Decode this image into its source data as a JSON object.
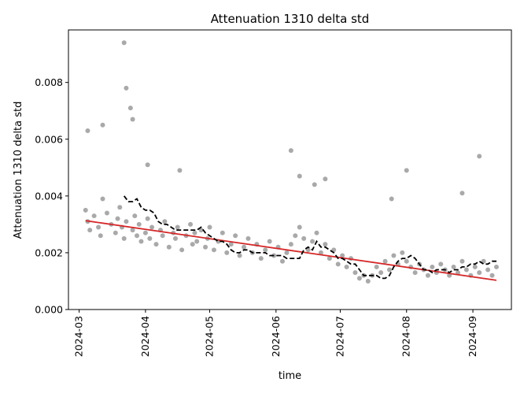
{
  "chart_data": {
    "type": "scatter",
    "title": "Attenuation 1310 delta std",
    "xlabel": "time",
    "ylabel": "Attenuation 1310 delta std",
    "xlim": [
      "2024-02-25",
      "2024-09-19"
    ],
    "ylim": [
      0,
      0.00985
    ],
    "x_ticks": [
      "2024-03",
      "2024-04",
      "2024-05",
      "2024-06",
      "2024-07",
      "2024-08",
      "2024-09"
    ],
    "y_ticks": [
      0.0,
      0.002,
      0.004,
      0.006,
      0.008
    ],
    "y_tick_labels": [
      "0.000",
      "0.002",
      "0.004",
      "0.006",
      "0.008"
    ],
    "grid": false,
    "colors": {
      "points": "#a9a9a9",
      "trend": "#d62728",
      "rolling": "#000000"
    },
    "series": [
      {
        "kind": "points",
        "x": [
          "2024-03-04",
          "2024-03-05",
          "2024-03-06",
          "2024-03-08",
          "2024-03-10",
          "2024-03-11",
          "2024-03-12",
          "2024-03-14",
          "2024-03-16",
          "2024-03-18",
          "2024-03-19",
          "2024-03-20",
          "2024-03-21",
          "2024-03-22",
          "2024-03-23",
          "2024-03-26",
          "2024-03-27",
          "2024-03-28",
          "2024-03-29",
          "2024-03-30",
          "2024-04-01",
          "2024-04-02",
          "2024-04-03",
          "2024-04-04",
          "2024-04-06",
          "2024-04-08",
          "2024-04-09",
          "2024-04-10",
          "2024-04-12",
          "2024-04-14",
          "2024-04-15",
          "2024-04-16",
          "2024-04-18",
          "2024-04-20",
          "2024-04-22",
          "2024-04-23",
          "2024-04-24",
          "2024-04-25",
          "2024-04-27",
          "2024-04-29",
          "2024-04-30",
          "2024-05-01",
          "2024-05-03",
          "2024-05-05",
          "2024-05-07",
          "2024-05-09",
          "2024-05-11",
          "2024-05-13",
          "2024-05-15",
          "2024-05-17",
          "2024-05-19",
          "2024-05-21",
          "2024-05-23",
          "2024-05-25",
          "2024-05-27",
          "2024-05-29",
          "2024-05-31",
          "2024-06-02",
          "2024-06-04",
          "2024-06-06",
          "2024-06-08",
          "2024-06-10",
          "2024-06-12",
          "2024-06-14",
          "2024-06-16",
          "2024-06-18",
          "2024-06-20",
          "2024-06-22",
          "2024-06-24",
          "2024-06-26",
          "2024-06-28",
          "2024-06-30",
          "2024-07-02",
          "2024-07-04",
          "2024-07-06",
          "2024-07-08",
          "2024-07-10",
          "2024-07-12",
          "2024-07-14",
          "2024-07-16",
          "2024-07-18",
          "2024-07-20",
          "2024-07-22",
          "2024-07-24",
          "2024-07-26",
          "2024-07-28",
          "2024-07-30",
          "2024-08-01",
          "2024-08-03",
          "2024-08-05",
          "2024-08-07",
          "2024-08-09",
          "2024-08-11",
          "2024-08-13",
          "2024-08-15",
          "2024-08-17",
          "2024-08-19",
          "2024-08-21",
          "2024-08-23",
          "2024-08-25",
          "2024-08-27",
          "2024-08-29",
          "2024-08-31",
          "2024-09-02",
          "2024-09-04",
          "2024-09-06",
          "2024-09-08",
          "2024-09-10",
          "2024-09-12",
          "2024-03-22",
          "2024-03-25",
          "2024-03-23",
          "2024-06-08",
          "2024-08-01",
          "2024-09-04",
          "2024-03-05",
          "2024-03-12",
          "2024-03-26",
          "2024-04-02",
          "2024-04-17",
          "2024-06-19",
          "2024-06-24",
          "2024-06-12",
          "2024-07-25",
          "2024-08-27"
        ],
        "y": [
          0.0035,
          0.0031,
          0.0028,
          0.0033,
          0.0029,
          0.0026,
          0.0039,
          0.0034,
          0.003,
          0.0027,
          0.0032,
          0.0036,
          0.0029,
          0.0025,
          0.0031,
          0.0028,
          0.0033,
          0.0026,
          0.003,
          0.0024,
          0.0027,
          0.0032,
          0.0025,
          0.0029,
          0.0023,
          0.0028,
          0.0026,
          0.0031,
          0.0022,
          0.0027,
          0.0025,
          0.0029,
          0.0021,
          0.0026,
          0.003,
          0.0023,
          0.0027,
          0.0024,
          0.0028,
          0.0022,
          0.0025,
          0.0029,
          0.0021,
          0.0024,
          0.0027,
          0.002,
          0.0023,
          0.0026,
          0.0019,
          0.0022,
          0.0025,
          0.002,
          0.0023,
          0.0018,
          0.0021,
          0.0024,
          0.0019,
          0.0022,
          0.0017,
          0.002,
          0.0023,
          0.0026,
          0.0029,
          0.0025,
          0.0021,
          0.0024,
          0.0027,
          0.002,
          0.0023,
          0.0018,
          0.0021,
          0.0016,
          0.0019,
          0.0015,
          0.0018,
          0.0013,
          0.0011,
          0.0012,
          0.001,
          0.0012,
          0.0015,
          0.0013,
          0.0017,
          0.0014,
          0.0019,
          0.0016,
          0.002,
          0.0017,
          0.0015,
          0.0013,
          0.0016,
          0.0014,
          0.0012,
          0.0015,
          0.0013,
          0.0016,
          0.0014,
          0.0012,
          0.0015,
          0.0013,
          0.0017,
          0.0014,
          0.0012,
          0.0015,
          0.0013,
          0.0017,
          0.0014,
          0.0012,
          0.0015,
          0.0094,
          0.0071,
          0.0078,
          0.0056,
          0.0049,
          0.0054,
          0.0063,
          0.0065,
          0.0067,
          0.0051,
          0.0049,
          0.0044,
          0.0046,
          0.0047,
          0.0039,
          0.0041
        ]
      },
      {
        "kind": "trend",
        "x": [
          "2024-03-04",
          "2024-09-12"
        ],
        "y": [
          0.00313,
          0.00103
        ]
      },
      {
        "kind": "rolling",
        "x": [
          "2024-03-22",
          "2024-03-24",
          "2024-03-26",
          "2024-03-28",
          "2024-03-30",
          "2024-04-01",
          "2024-04-03",
          "2024-04-05",
          "2024-04-07",
          "2024-04-09",
          "2024-04-11",
          "2024-04-13",
          "2024-04-15",
          "2024-04-17",
          "2024-04-19",
          "2024-04-21",
          "2024-04-23",
          "2024-04-25",
          "2024-04-27",
          "2024-04-29",
          "2024-05-01",
          "2024-05-03",
          "2024-05-05",
          "2024-05-07",
          "2024-05-09",
          "2024-05-11",
          "2024-05-13",
          "2024-05-15",
          "2024-05-17",
          "2024-05-19",
          "2024-05-21",
          "2024-05-23",
          "2024-05-25",
          "2024-05-27",
          "2024-05-29",
          "2024-05-31",
          "2024-06-02",
          "2024-06-04",
          "2024-06-06",
          "2024-06-08",
          "2024-06-10",
          "2024-06-12",
          "2024-06-14",
          "2024-06-16",
          "2024-06-18",
          "2024-06-20",
          "2024-06-22",
          "2024-06-24",
          "2024-06-26",
          "2024-06-28",
          "2024-06-30",
          "2024-07-02",
          "2024-07-04",
          "2024-07-06",
          "2024-07-08",
          "2024-07-10",
          "2024-07-12",
          "2024-07-14",
          "2024-07-16",
          "2024-07-18",
          "2024-07-20",
          "2024-07-22",
          "2024-07-24",
          "2024-07-26",
          "2024-07-28",
          "2024-07-30",
          "2024-08-01",
          "2024-08-03",
          "2024-08-05",
          "2024-08-07",
          "2024-08-09",
          "2024-08-11",
          "2024-08-13",
          "2024-08-15",
          "2024-08-17",
          "2024-08-19",
          "2024-08-21",
          "2024-08-23",
          "2024-08-25",
          "2024-08-27",
          "2024-08-29",
          "2024-08-31",
          "2024-09-02",
          "2024-09-04",
          "2024-09-06",
          "2024-09-08",
          "2024-09-10",
          "2024-09-12"
        ],
        "y": [
          0.004,
          0.0038,
          0.0038,
          0.0039,
          0.0036,
          0.0035,
          0.0035,
          0.0034,
          0.0031,
          0.003,
          0.003,
          0.0029,
          0.0028,
          0.0028,
          0.0028,
          0.0028,
          0.0028,
          0.0028,
          0.0029,
          0.0027,
          0.0026,
          0.0025,
          0.0024,
          0.0024,
          0.0023,
          0.0021,
          0.002,
          0.002,
          0.0021,
          0.0021,
          0.002,
          0.002,
          0.002,
          0.002,
          0.0019,
          0.0019,
          0.0019,
          0.0019,
          0.0018,
          0.0018,
          0.0018,
          0.0018,
          0.0021,
          0.0022,
          0.0021,
          0.0024,
          0.0022,
          0.0022,
          0.0021,
          0.002,
          0.0018,
          0.0018,
          0.0017,
          0.0016,
          0.0016,
          0.0014,
          0.0012,
          0.0012,
          0.0012,
          0.0012,
          0.0011,
          0.0011,
          0.0012,
          0.0015,
          0.0017,
          0.0018,
          0.0018,
          0.0019,
          0.0018,
          0.0016,
          0.0014,
          0.0014,
          0.0013,
          0.0014,
          0.0014,
          0.0014,
          0.0013,
          0.0014,
          0.0014,
          0.0015,
          0.0015,
          0.0016,
          0.0016,
          0.0017,
          0.0016,
          0.0016,
          0.0017,
          0.0017
        ]
      }
    ]
  }
}
